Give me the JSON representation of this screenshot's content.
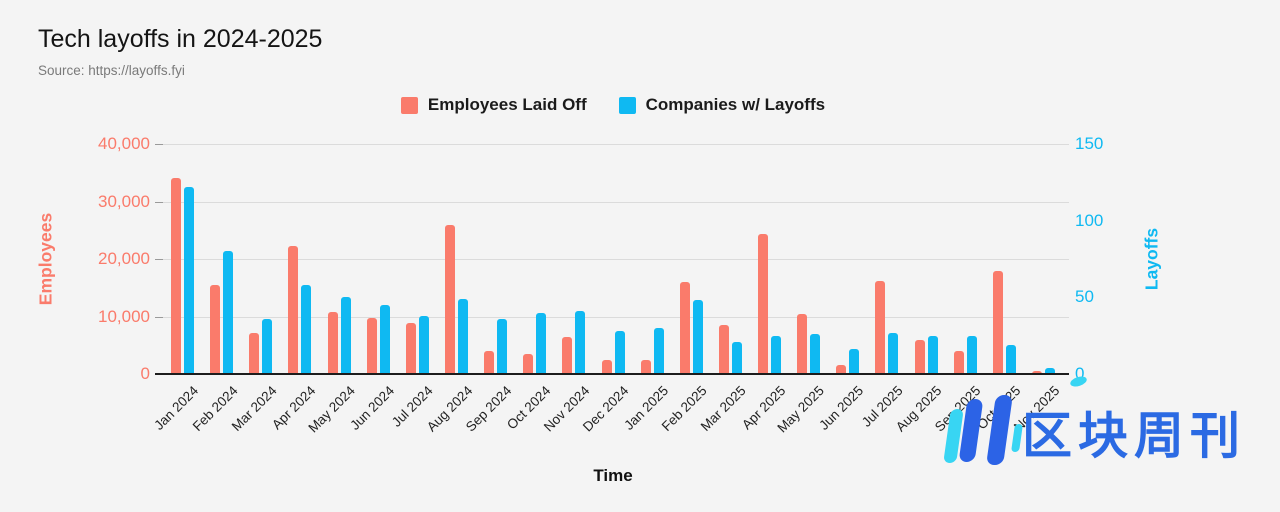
{
  "header": {
    "title": "Tech layoffs in 2024-2025",
    "source": "Source: https://layoffs.fyi"
  },
  "legend": [
    {
      "label": "Employees Laid Off",
      "color": "#fa7b6b"
    },
    {
      "label": "Companies w/ Layoffs",
      "color": "#0fb9f2"
    }
  ],
  "axes": {
    "left": {
      "title": "Employees",
      "color": "#fa7b6b",
      "tick_labels": [
        "40,000",
        "30,000",
        "20,000",
        "10,000",
        "0"
      ],
      "max": 40000
    },
    "right": {
      "title": "Layoffs",
      "color": "#0fb9f2",
      "tick_labels": [
        "150",
        "100",
        "50",
        "0"
      ],
      "max": 150
    },
    "x": {
      "title": "Time"
    }
  },
  "chart_data": {
    "type": "bar",
    "title": "Tech layoffs in 2024-2025",
    "xlabel": "Time",
    "ylabel_left": "Employees",
    "ylabel_right": "Layoffs",
    "ylim_left": [
      0,
      40000
    ],
    "ylim_right": [
      0,
      150
    ],
    "grid": true,
    "legend_position": "top",
    "categories": [
      "Jan 2024",
      "Feb 2024",
      "Mar 2024",
      "Apr 2024",
      "May 2024",
      "Jun 2024",
      "Jul 2024",
      "Aug 2024",
      "Sep 2024",
      "Oct 2024",
      "Nov 2024",
      "Dec 2024",
      "Jan 2025",
      "Feb 2025",
      "Mar 2025",
      "Apr 2025",
      "May 2025",
      "Jun 2025",
      "Jul 2025",
      "Aug 2025",
      "Sep 2025",
      "Oct 2025",
      "Nov 2025"
    ],
    "series": [
      {
        "name": "Employees Laid Off",
        "axis": "left",
        "color": "#fa7b6b",
        "values": [
          34100,
          15400,
          7200,
          22300,
          10800,
          9800,
          8800,
          25900,
          4000,
          3400,
          6500,
          2400,
          2400,
          16000,
          8600,
          24300,
          10400,
          1600,
          16200,
          6000,
          4000,
          18000,
          500
        ]
      },
      {
        "name": "Companies w/ Layoffs",
        "axis": "right",
        "color": "#0fb9f2",
        "values": [
          122,
          80,
          36,
          58,
          50,
          45,
          38,
          49,
          36,
          40,
          41,
          28,
          30,
          48,
          21,
          25,
          26,
          16,
          27,
          25,
          25,
          19,
          4
        ]
      }
    ]
  },
  "watermark": {
    "text": "区块周刊",
    "text_color": "#2b6ae3",
    "bar_blue": "#2c63e6",
    "bar_cyan": "#38d5f3"
  }
}
